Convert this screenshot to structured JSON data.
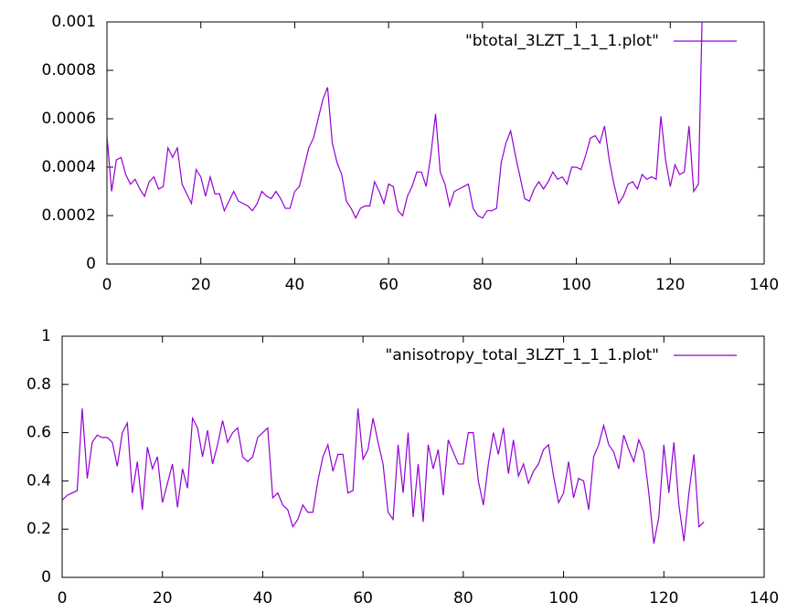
{
  "chart_data": [
    {
      "type": "line",
      "x": [
        0,
        1,
        2,
        3,
        4,
        5,
        6,
        7,
        8,
        9,
        10,
        11,
        12,
        13,
        14,
        15,
        16,
        17,
        18,
        19,
        20,
        21,
        22,
        23,
        24,
        25,
        26,
        27,
        28,
        29,
        30,
        31,
        32,
        33,
        34,
        35,
        36,
        37,
        38,
        39,
        40,
        41,
        42,
        43,
        44,
        45,
        46,
        47,
        48,
        49,
        50,
        51,
        52,
        53,
        54,
        55,
        56,
        57,
        58,
        59,
        60,
        61,
        62,
        63,
        64,
        65,
        66,
        67,
        68,
        69,
        70,
        71,
        72,
        73,
        74,
        75,
        76,
        77,
        78,
        79,
        80,
        81,
        82,
        83,
        84,
        85,
        86,
        87,
        88,
        89,
        90,
        91,
        92,
        93,
        94,
        95,
        96,
        97,
        98,
        99,
        100,
        101,
        102,
        103,
        104,
        105,
        106,
        107,
        108,
        109,
        110,
        111,
        112,
        113,
        114,
        115,
        116,
        117,
        118,
        119,
        120,
        121,
        122,
        123,
        124,
        125,
        126,
        127
      ],
      "series": [
        {
          "name": "\"btotal_3LZT_1_1_1.plot\"",
          "color": "#9400d3",
          "values": [
            0.00053,
            0.0003,
            0.00043,
            0.00044,
            0.00037,
            0.00033,
            0.00035,
            0.00031,
            0.00028,
            0.00034,
            0.00036,
            0.00031,
            0.00032,
            0.00048,
            0.00044,
            0.00048,
            0.00033,
            0.00029,
            0.00025,
            0.00039,
            0.00036,
            0.00028,
            0.00036,
            0.00029,
            0.00029,
            0.00022,
            0.00026,
            0.0003,
            0.00026,
            0.00025,
            0.00024,
            0.00022,
            0.00025,
            0.0003,
            0.00028,
            0.00027,
            0.0003,
            0.00027,
            0.00023,
            0.00023,
            0.0003,
            0.00032,
            0.0004,
            0.00048,
            0.00052,
            0.0006,
            0.00068,
            0.00073,
            0.0005,
            0.00042,
            0.00037,
            0.00026,
            0.00023,
            0.00019,
            0.00023,
            0.00024,
            0.00024,
            0.00034,
            0.0003,
            0.00025,
            0.00033,
            0.00032,
            0.00022,
            0.0002,
            0.00028,
            0.00032,
            0.00038,
            0.00038,
            0.00032,
            0.00045,
            0.00062,
            0.00038,
            0.00033,
            0.00024,
            0.0003,
            0.00031,
            0.00032,
            0.00033,
            0.00023,
            0.0002,
            0.00019,
            0.00022,
            0.00022,
            0.00023,
            0.00042,
            0.0005,
            0.00055,
            0.00045,
            0.00036,
            0.00027,
            0.00026,
            0.00031,
            0.00034,
            0.00031,
            0.00034,
            0.00038,
            0.00035,
            0.00036,
            0.00033,
            0.0004,
            0.0004,
            0.00039,
            0.00045,
            0.00052,
            0.00053,
            0.0005,
            0.00057,
            0.00043,
            0.00033,
            0.00025,
            0.00028,
            0.00033,
            0.00034,
            0.00031,
            0.00037,
            0.00035,
            0.00036,
            0.00035,
            0.00061,
            0.00043,
            0.00032,
            0.00041,
            0.00037,
            0.00038,
            0.00057,
            0.0003,
            0.00033,
            0.0012
          ]
        }
      ],
      "xlim": [
        0,
        140
      ],
      "xticks": [
        0,
        20,
        40,
        60,
        80,
        100,
        120,
        140
      ],
      "ylim": [
        0,
        0.001
      ],
      "yticks": [
        0,
        0.0002,
        0.0004,
        0.0006,
        0.0008,
        0.001
      ],
      "legend": "top right",
      "grid": false
    },
    {
      "type": "line",
      "x": [
        0,
        1,
        2,
        3,
        4,
        5,
        6,
        7,
        8,
        9,
        10,
        11,
        12,
        13,
        14,
        15,
        16,
        17,
        18,
        19,
        20,
        21,
        22,
        23,
        24,
        25,
        26,
        27,
        28,
        29,
        30,
        31,
        32,
        33,
        34,
        35,
        36,
        37,
        38,
        39,
        40,
        41,
        42,
        43,
        44,
        45,
        46,
        47,
        48,
        49,
        50,
        51,
        52,
        53,
        54,
        55,
        56,
        57,
        58,
        59,
        60,
        61,
        62,
        63,
        64,
        65,
        66,
        67,
        68,
        69,
        70,
        71,
        72,
        73,
        74,
        75,
        76,
        77,
        78,
        79,
        80,
        81,
        82,
        83,
        84,
        85,
        86,
        87,
        88,
        89,
        90,
        91,
        92,
        93,
        94,
        95,
        96,
        97,
        98,
        99,
        100,
        101,
        102,
        103,
        104,
        105,
        106,
        107,
        108,
        109,
        110,
        111,
        112,
        113,
        114,
        115,
        116,
        117,
        118,
        119,
        120,
        121,
        122,
        123,
        124,
        125,
        126,
        127,
        128
      ],
      "series": [
        {
          "name": "\"anisotropy_total_3LZT_1_1_1.plot\"",
          "color": "#9400d3",
          "values": [
            0.32,
            0.34,
            0.35,
            0.36,
            0.7,
            0.41,
            0.56,
            0.59,
            0.58,
            0.58,
            0.56,
            0.46,
            0.6,
            0.64,
            0.35,
            0.48,
            0.28,
            0.54,
            0.45,
            0.5,
            0.31,
            0.39,
            0.47,
            0.29,
            0.45,
            0.37,
            0.66,
            0.62,
            0.5,
            0.61,
            0.47,
            0.55,
            0.65,
            0.56,
            0.6,
            0.62,
            0.5,
            0.48,
            0.5,
            0.58,
            0.6,
            0.62,
            0.33,
            0.35,
            0.3,
            0.28,
            0.21,
            0.24,
            0.3,
            0.27,
            0.27,
            0.4,
            0.5,
            0.55,
            0.44,
            0.51,
            0.51,
            0.35,
            0.36,
            0.7,
            0.49,
            0.53,
            0.66,
            0.56,
            0.47,
            0.27,
            0.24,
            0.55,
            0.35,
            0.6,
            0.25,
            0.47,
            0.23,
            0.55,
            0.45,
            0.53,
            0.34,
            0.57,
            0.52,
            0.47,
            0.47,
            0.6,
            0.6,
            0.4,
            0.3,
            0.47,
            0.6,
            0.51,
            0.62,
            0.43,
            0.57,
            0.42,
            0.47,
            0.39,
            0.44,
            0.47,
            0.53,
            0.55,
            0.42,
            0.31,
            0.35,
            0.48,
            0.33,
            0.41,
            0.4,
            0.28,
            0.5,
            0.55,
            0.63,
            0.55,
            0.52,
            0.45,
            0.59,
            0.53,
            0.48,
            0.57,
            0.52,
            0.35,
            0.14,
            0.25,
            0.55,
            0.35,
            0.56,
            0.3,
            0.15,
            0.35,
            0.51,
            0.21,
            0.23
          ]
        }
      ],
      "xlim": [
        0,
        140
      ],
      "xticks": [
        0,
        20,
        40,
        60,
        80,
        100,
        120,
        140
      ],
      "ylim": [
        0,
        1
      ],
      "yticks": [
        0,
        0.2,
        0.4,
        0.6,
        0.8,
        1
      ],
      "legend": "top right",
      "grid": false
    }
  ]
}
